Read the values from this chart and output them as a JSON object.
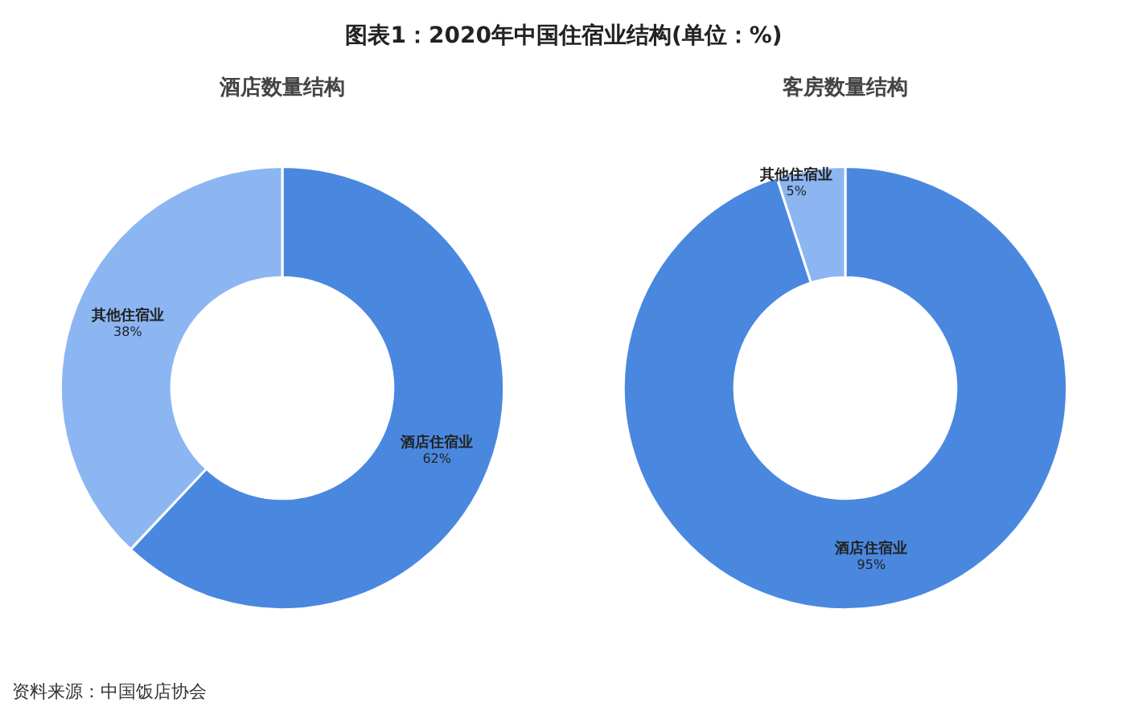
{
  "chart_data": [
    {
      "type": "other",
      "title": "图表1：2020年中国住宿业结构(单位：%)",
      "annotations": [
        "资料来源：中国饭店协会"
      ]
    },
    {
      "type": "donut",
      "title": "酒店数量结构",
      "categories": [
        "酒店住宿业",
        "其他住宿业"
      ],
      "values": [
        62,
        38
      ],
      "colors": [
        "#4a88e0",
        "#8cb6f2"
      ],
      "value_labels": [
        "62%",
        "38%"
      ]
    },
    {
      "type": "donut",
      "title": "客房数量结构",
      "categories": [
        "酒店住宿业",
        "其他住宿业"
      ],
      "values": [
        95,
        5
      ],
      "colors": [
        "#4a88e0",
        "#8cb6f2"
      ],
      "value_labels": [
        "95%",
        "5%"
      ]
    }
  ]
}
